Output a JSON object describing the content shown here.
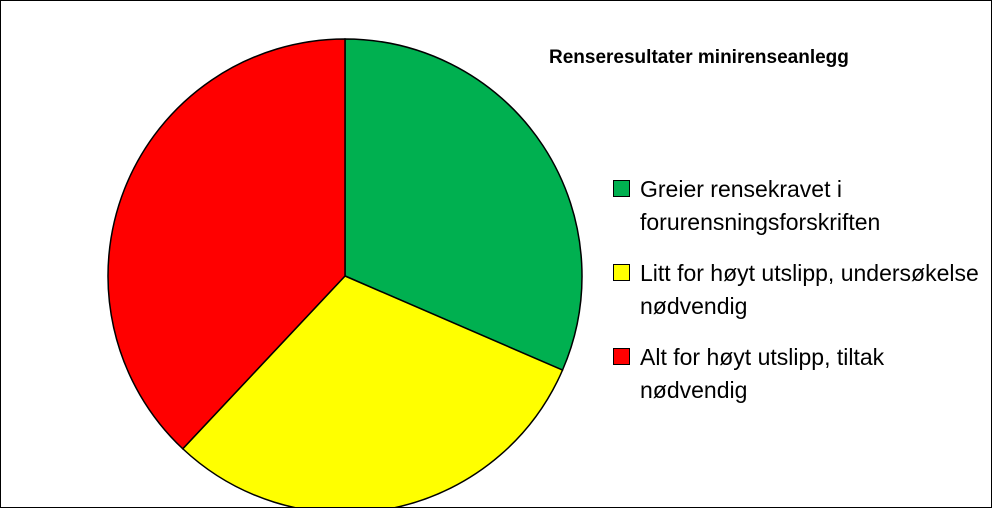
{
  "chart_data": {
    "type": "pie",
    "title": "Renseresultater minirenseanlegg",
    "categories": [
      "Greier rensekravet i forurensningsforskriften",
      "Litt for høyt utslipp, undersøkelse nødvendig",
      "Alt for høyt utslipp, tiltak nødvendig"
    ],
    "values": [
      31.5,
      30.5,
      38
    ],
    "colors": [
      "#00b050",
      "#ffff00",
      "#ff0000"
    ],
    "legend": "right"
  }
}
